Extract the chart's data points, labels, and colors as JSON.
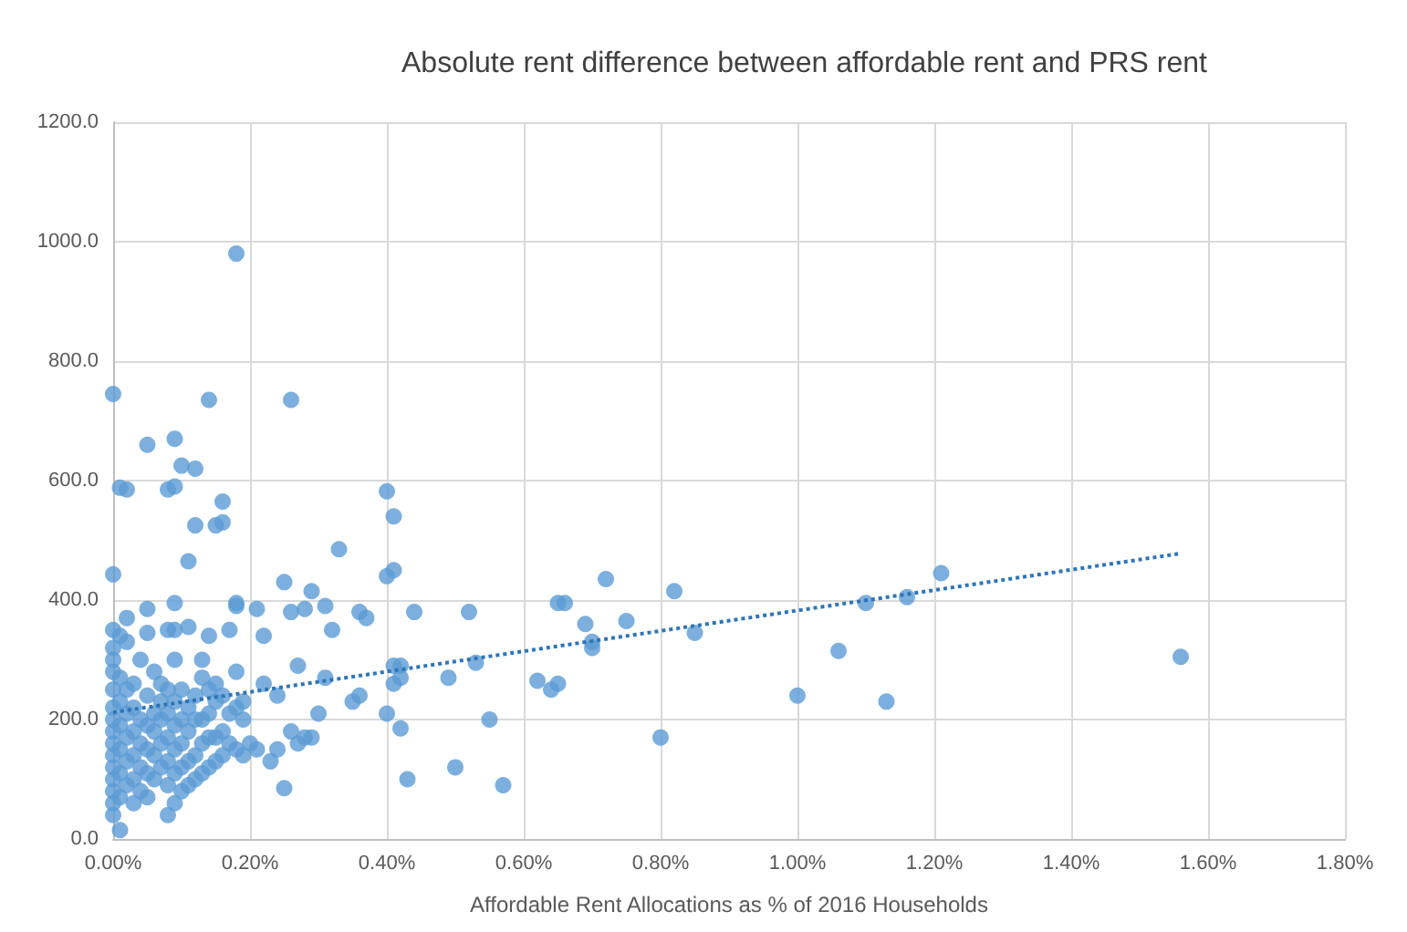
{
  "chart_data": {
    "type": "scatter",
    "title": "Absolute rent difference between affordable rent and PRS rent",
    "xlabel": "Affordable Rent Allocations as % of 2016 Households",
    "xlim": [
      0,
      1.8
    ],
    "xticks": [
      {
        "value": 0,
        "label": "0.00%"
      },
      {
        "value": 0.2,
        "label": "0.20%"
      },
      {
        "value": 0.4,
        "label": "0.40%"
      },
      {
        "value": 0.6,
        "label": "0.60%"
      },
      {
        "value": 0.8,
        "label": "0.80%"
      },
      {
        "value": 1.0,
        "label": "1.00%"
      },
      {
        "value": 1.2,
        "label": "1.20%"
      },
      {
        "value": 1.4,
        "label": "1.40%"
      },
      {
        "value": 1.6,
        "label": "1.60%"
      },
      {
        "value": 1.8,
        "label": "1.80%"
      }
    ],
    "ylim": [
      0,
      1200
    ],
    "yticks": [
      {
        "value": 0,
        "label": "0.0"
      },
      {
        "value": 200,
        "label": "200.0"
      },
      {
        "value": 400,
        "label": "400.0"
      },
      {
        "value": 600,
        "label": "600.0"
      },
      {
        "value": 800,
        "label": "800.0"
      },
      {
        "value": 1000,
        "label": "1000.0"
      },
      {
        "value": 1200,
        "label": "1200.0"
      }
    ],
    "grid": true,
    "marker": "circle",
    "series": [
      {
        "color": "#5b9bd5",
        "x": [
          0,
          0,
          0.18,
          0.01,
          0.02,
          0.05,
          0.09,
          0.1,
          0.08,
          0.09,
          0.12,
          0.14,
          0.26,
          0.15,
          0.16,
          0.16,
          0.11,
          0.12,
          0.4,
          0.41,
          0,
          0.01,
          0.02,
          0.02,
          0.05,
          0.05,
          0.08,
          0.09,
          0.09,
          0.11,
          0.13,
          0.14,
          0.15,
          0.17,
          0.18,
          0.18,
          0.21,
          0.22,
          0.25,
          0.26,
          0.28,
          0.29,
          0.31,
          0.32,
          0.33,
          0.36,
          0.41,
          0.4,
          0.44,
          0.52,
          0.53,
          0.55,
          0.57,
          0.5,
          0.49,
          0.43,
          0.42,
          0.41,
          0.42,
          0.41,
          0.42,
          0.4,
          0.37,
          0.36,
          0.35,
          0.31,
          0.3,
          0.29,
          0.27,
          0.28,
          0.27,
          0.26,
          0.24,
          0.23,
          0.25,
          0.21,
          0.2,
          0.24,
          0.22,
          0.19,
          0.62,
          0.64,
          0.65,
          0.66,
          0.65,
          0.69,
          0.7,
          0.7,
          0.72,
          0.75,
          0.8,
          0.82,
          0.85,
          1.0,
          1.06,
          1.1,
          1.13,
          1.16,
          1.21,
          1.56,
          0,
          0,
          0,
          0,
          0,
          0,
          0,
          0,
          0,
          0,
          0,
          0,
          0,
          0,
          0.01,
          0.01,
          0.01,
          0.01,
          0.01,
          0.01,
          0.01,
          0.02,
          0.02,
          0.02,
          0.02,
          0.02,
          0.03,
          0.03,
          0.03,
          0.03,
          0.03,
          0.03,
          0.04,
          0.04,
          0.04,
          0.04,
          0.04,
          0.05,
          0.05,
          0.05,
          0.05,
          0.05,
          0.06,
          0.06,
          0.06,
          0.06,
          0.06,
          0.07,
          0.07,
          0.07,
          0.07,
          0.07,
          0.08,
          0.08,
          0.08,
          0.08,
          0.08,
          0.08,
          0.09,
          0.09,
          0.09,
          0.09,
          0.09,
          0.09,
          0.1,
          0.1,
          0.1,
          0.1,
          0.1,
          0.11,
          0.11,
          0.11,
          0.11,
          0.12,
          0.12,
          0.12,
          0.12,
          0.13,
          0.13,
          0.13,
          0.13,
          0.14,
          0.14,
          0.14,
          0.14,
          0.15,
          0.15,
          0.15,
          0.16,
          0.16,
          0.16,
          0.17,
          0.17,
          0.18,
          0.18,
          0.18,
          0.19,
          0.19
        ],
        "values": [
          745,
          443,
          980,
          588,
          585,
          660,
          670,
          625,
          585,
          590,
          620,
          735,
          735,
          525,
          565,
          530,
          465,
          525,
          582,
          540,
          350,
          340,
          370,
          330,
          385,
          345,
          350,
          395,
          350,
          355,
          300,
          340,
          260,
          350,
          395,
          390,
          385,
          340,
          430,
          380,
          385,
          415,
          390,
          350,
          485,
          380,
          450,
          440,
          380,
          380,
          295,
          200,
          90,
          120,
          270,
          100,
          185,
          290,
          290,
          260,
          270,
          210,
          370,
          240,
          230,
          270,
          210,
          170,
          290,
          170,
          160,
          180,
          150,
          130,
          85,
          150,
          160,
          240,
          260,
          230,
          265,
          250,
          395,
          395,
          260,
          360,
          330,
          320,
          435,
          365,
          170,
          415,
          345,
          240,
          315,
          395,
          230,
          405,
          445,
          305,
          40,
          60,
          80,
          100,
          120,
          140,
          160,
          180,
          200,
          220,
          250,
          280,
          300,
          320,
          70,
          110,
          150,
          190,
          230,
          270,
          15,
          90,
          130,
          170,
          210,
          250,
          60,
          100,
          140,
          180,
          220,
          260,
          80,
          120,
          160,
          200,
          300,
          70,
          110,
          150,
          190,
          240,
          100,
          140,
          180,
          210,
          280,
          120,
          160,
          200,
          230,
          260,
          40,
          90,
          130,
          170,
          210,
          250,
          60,
          110,
          150,
          190,
          230,
          300,
          80,
          120,
          160,
          200,
          250,
          90,
          130,
          180,
          220,
          100,
          140,
          200,
          240,
          110,
          160,
          200,
          270,
          120,
          170,
          210,
          250,
          130,
          170,
          230,
          140,
          180,
          240,
          160,
          210,
          150,
          220,
          280,
          140,
          200
        ]
      },
      {
        "type": "line",
        "color": "#2e75b6",
        "x": [
          0,
          1.56
        ],
        "values": [
          212,
          478
        ],
        "line_style": "dotted",
        "marker": "none"
      }
    ]
  }
}
